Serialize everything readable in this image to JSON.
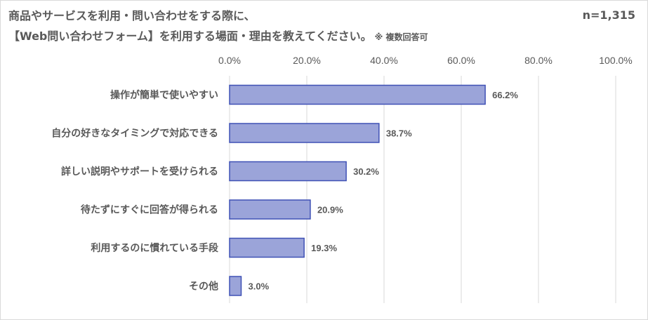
{
  "title": {
    "line1": "商品やサービスを利用・問い合わせをする際に、",
    "line2": "【Web問い合わせフォーム】を利用する場面・理由を教えてください。",
    "note": "※ 複数回答可"
  },
  "sample_size": "n=1,315",
  "chart_data": {
    "type": "bar",
    "orientation": "horizontal",
    "categories": [
      "操作が簡単で使いやすい",
      "自分の好きなタイミングで対応できる",
      "詳しい説明やサポートを受けられる",
      "待たずにすぐに回答が得られる",
      "利用するのに慣れている手段",
      "その他"
    ],
    "values": [
      66.2,
      38.7,
      30.2,
      20.9,
      19.3,
      3.0
    ],
    "value_labels": [
      "66.2%",
      "38.7%",
      "30.2%",
      "20.9%",
      "19.3%",
      "3.0%"
    ],
    "xlim": [
      0,
      100
    ],
    "ticks": [
      0,
      20,
      40,
      60,
      80,
      100
    ],
    "tick_labels": [
      "0.0%",
      "20.0%",
      "40.0%",
      "60.0%",
      "80.0%",
      "100.0%"
    ],
    "axis_position": "top",
    "grid": true,
    "colors": {
      "bar_fill": "#9ba4d9",
      "bar_stroke": "#3f51b5",
      "grid": "#d9d9d9",
      "text": "#595959"
    }
  }
}
